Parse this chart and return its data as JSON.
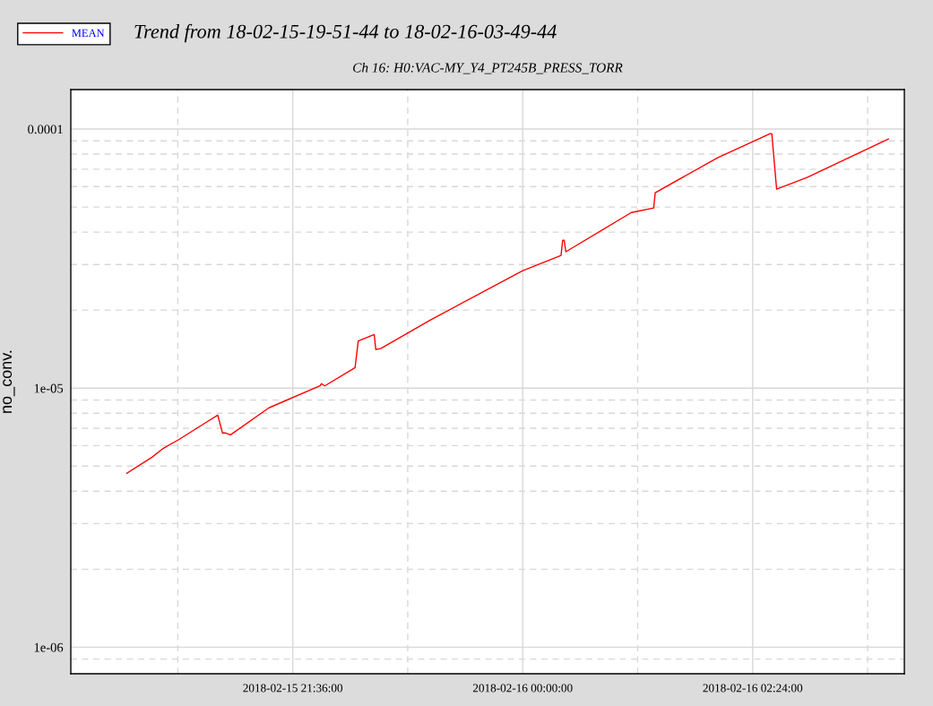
{
  "chart_data": {
    "type": "line",
    "title": "Trend from 18-02-15-19-51-44 to 18-02-16-03-49-44",
    "subtitle": "Ch 16: H0:VAC-MY_Y4_PT245B_PRESS_TORR",
    "ylabel": "no_conv.",
    "log": true,
    "grid": true,
    "legend": "top left",
    "line_style": "solid",
    "marker": "none",
    "x": [
      "2018-02-15T19:52",
      "2018-02-15T20:08",
      "2018-02-15T20:15",
      "2018-02-15T20:25",
      "2018-02-15T20:41",
      "2018-02-15T20:49",
      "2018-02-15T20:52",
      "2018-02-15T20:54",
      "2018-02-15T20:57",
      "2018-02-15T21:21",
      "2018-02-15T21:53",
      "2018-02-15T21:54",
      "2018-02-15T21:56",
      "2018-02-15T22:15",
      "2018-02-15T22:17",
      "2018-02-15T22:27",
      "2018-02-15T22:28",
      "2018-02-15T22:31",
      "2018-02-15T23:02",
      "2018-02-16T00:00",
      "2018-02-16T00:24",
      "2018-02-16T00:25",
      "2018-02-16T00:26",
      "2018-02-16T00:27",
      "2018-02-16T01:08",
      "2018-02-16T01:22",
      "2018-02-16T01:23",
      "2018-02-16T02:02",
      "2018-02-16T02:35",
      "2018-02-16T02:36",
      "2018-02-16T02:39",
      "2018-02-16T02:58",
      "2018-02-16T03:49"
    ],
    "series": [
      {
        "name": "MEAN",
        "color": "#ff0000",
        "values": [
          4.69e-06,
          5.42e-06,
          5.86e-06,
          6.35e-06,
          7.33e-06,
          7.87e-06,
          6.71e-06,
          6.71e-06,
          6.6e-06,
          8.39e-06,
          1.02e-05,
          1.04e-05,
          1.02e-05,
          1.2e-05,
          1.52e-05,
          1.61e-05,
          1.41e-05,
          1.42e-05,
          1.83e-05,
          2.84e-05,
          3.25e-05,
          3.72e-05,
          3.72e-05,
          3.36e-05,
          4.76e-05,
          4.96e-05,
          5.68e-05,
          7.75e-05,
          9.6e-05,
          9.6e-05,
          5.86e-05,
          6.5e-05,
          9.16e-05
        ]
      }
    ],
    "xlim": [
      "2018-02-15T19:17",
      "2018-02-16T03:59"
    ],
    "xticks": [
      {
        "value": "2018-02-15T20:24",
        "label": null
      },
      {
        "value": "2018-02-15T21:36",
        "label": "2018-02-15 21:36:00"
      },
      {
        "value": "2018-02-15T22:48",
        "label": null
      },
      {
        "value": "2018-02-16T00:00",
        "label": "2018-02-16 00:00:00"
      },
      {
        "value": "2018-02-16T01:12",
        "label": null
      },
      {
        "value": "2018-02-16T02:24",
        "label": "2018-02-16 02:24:00"
      },
      {
        "value": "2018-02-16T03:36",
        "label": null
      }
    ],
    "ylim": [
      7.9e-07,
      0.000142
    ],
    "yticks": [
      {
        "value": 9e-07,
        "label": null
      },
      1e-06,
      {
        "value": 2e-06,
        "label": null
      },
      {
        "value": 3e-06,
        "label": null
      },
      {
        "value": 4e-06,
        "label": null
      },
      {
        "value": 5e-06,
        "label": null
      },
      {
        "value": 6e-06,
        "label": null
      },
      {
        "value": 7e-06,
        "label": null
      },
      {
        "value": 8e-06,
        "label": null
      },
      {
        "value": 9e-06,
        "label": null
      },
      1e-05,
      {
        "value": 2e-05,
        "label": null
      },
      {
        "value": 3e-05,
        "label": null
      },
      {
        "value": 4e-05,
        "label": null
      },
      {
        "value": 5e-05,
        "label": null
      },
      {
        "value": 6e-05,
        "label": null
      },
      {
        "value": 7e-05,
        "label": null
      },
      {
        "value": 8e-05,
        "label": null
      },
      {
        "value": 9e-05,
        "label": null
      },
      0.0001
    ]
  }
}
